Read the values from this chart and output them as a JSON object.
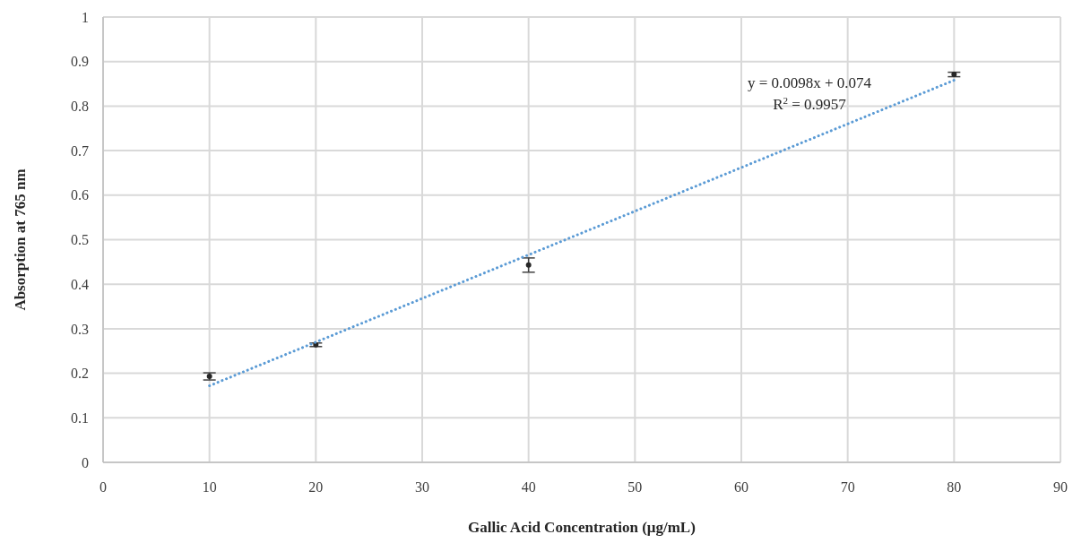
{
  "chart_data": {
    "type": "scatter",
    "xlabel": "Gallic Acid Concentration (μg/mL)",
    "ylabel": "Absorption at 765 nm",
    "xlim": [
      0,
      90
    ],
    "xticks": [
      0,
      10,
      20,
      30,
      40,
      50,
      60,
      70,
      80,
      90
    ],
    "ylim": [
      0,
      1
    ],
    "yticks": [
      0,
      0.1,
      0.2,
      0.3,
      0.4,
      0.5,
      0.6,
      0.7,
      0.8,
      0.9,
      1
    ],
    "grid": true,
    "series": [
      {
        "color": "#262626",
        "marker": "circle",
        "x": [
          10,
          20,
          40,
          80
        ],
        "values": [
          0.193,
          0.264,
          0.443,
          0.871
        ],
        "errors": [
          0.008,
          0.004,
          0.016,
          0.005
        ]
      },
      {
        "type": "line",
        "color": "#5b9bd5",
        "line_style": "dotted",
        "x": [
          10,
          80
        ],
        "values": [
          0.172,
          0.858
        ]
      }
    ],
    "annotations": [
      "y = 0.0098x + 0.074",
      "R$^{2}$ = 0.9957"
    ]
  }
}
